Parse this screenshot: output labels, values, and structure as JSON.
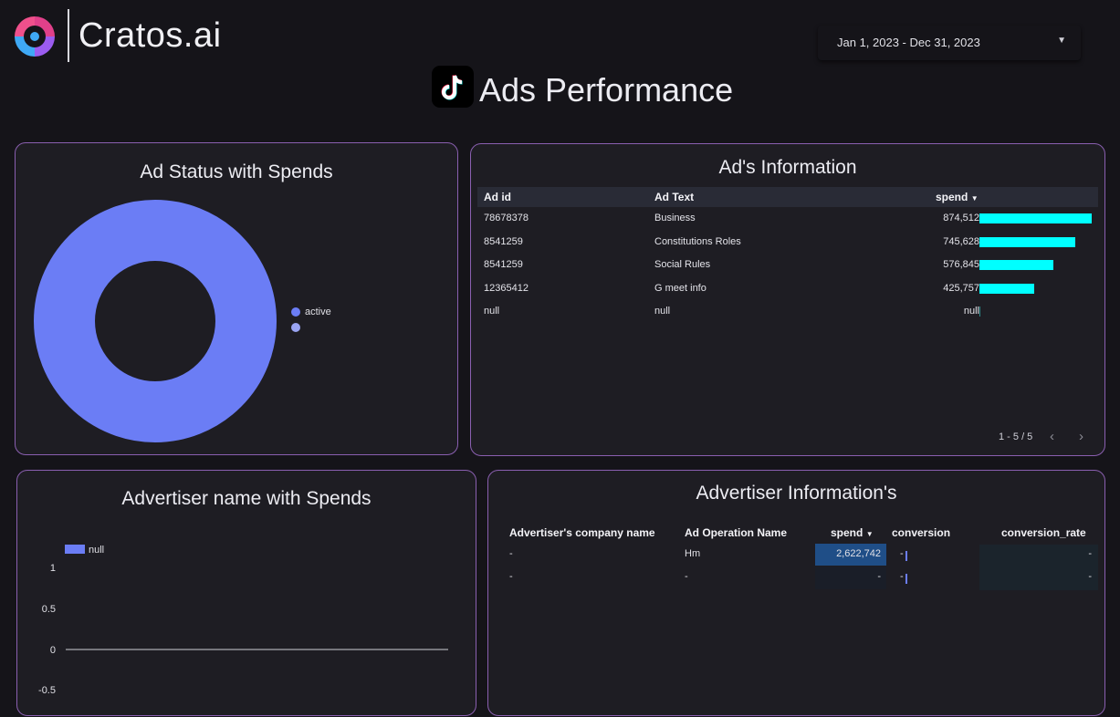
{
  "brand": {
    "name": "Cratos.ai",
    "logo_icon": "cratos-logo-icon"
  },
  "date_range": {
    "label": "Jan 1, 2023 - Dec 31, 2023",
    "caret_icon": "caret-down-icon"
  },
  "page": {
    "title": "Ads Performance",
    "platform_icon": "tiktok-logo-icon"
  },
  "colors": {
    "accent": "#6b7df5",
    "accent_light": "#9aa4f3",
    "bar": "#00ffff",
    "border": "#8a5fb0",
    "highlight": "#1f4e87"
  },
  "ad_status": {
    "title": "Ad Status with Spends",
    "legend": [
      {
        "label": "active",
        "color": "#6b7df5"
      },
      {
        "label": "",
        "color": "#9aa4f3"
      }
    ],
    "chart_data": {
      "type": "pie",
      "donut": true,
      "categories": [
        "active",
        ""
      ],
      "values": [
        100,
        0
      ]
    }
  },
  "ad_info": {
    "title": "Ad's Information",
    "columns": [
      "Ad id",
      "Ad Text",
      "spend"
    ],
    "sort_icon": "sort-desc-icon",
    "rows": [
      {
        "id": "78678378",
        "text": "Business",
        "spend": "874,512",
        "value": 874512
      },
      {
        "id": "8541259",
        "text": "Constitutions Roles",
        "spend": "745,628",
        "value": 745628
      },
      {
        "id": "8541259",
        "text": "Social Rules",
        "spend": "576,845",
        "value": 576845
      },
      {
        "id": "12365412",
        "text": "G meet info",
        "spend": "425,757",
        "value": 425757
      },
      {
        "id": "null",
        "text": "null",
        "spend": "null",
        "value": 0
      }
    ],
    "max_value": 874512,
    "pagination": "1 - 5 / 5",
    "prev_icon": "chevron-left-icon",
    "next_icon": "chevron-right-icon"
  },
  "advertiser_chart": {
    "title": "Advertiser name with Spends",
    "legend_label": "null",
    "chart_data": {
      "type": "bar",
      "series": [
        {
          "name": "null",
          "values": []
        }
      ],
      "y_ticks": [
        "1",
        "0.5",
        "0",
        "-0.5"
      ],
      "ylim": [
        -0.5,
        1
      ]
    }
  },
  "advertiser_info": {
    "title": "Advertiser Information's",
    "columns": [
      "Advertiser's company name",
      "Ad Operation Name",
      "spend",
      "conversion",
      "conversion_rate"
    ],
    "rows": [
      {
        "company": "-",
        "operation": "Hm",
        "spend": "2,622,742",
        "conversion": "-",
        "rate": "-"
      },
      {
        "company": "-",
        "operation": "-",
        "spend": "-",
        "conversion": "-",
        "rate": "-"
      }
    ]
  }
}
